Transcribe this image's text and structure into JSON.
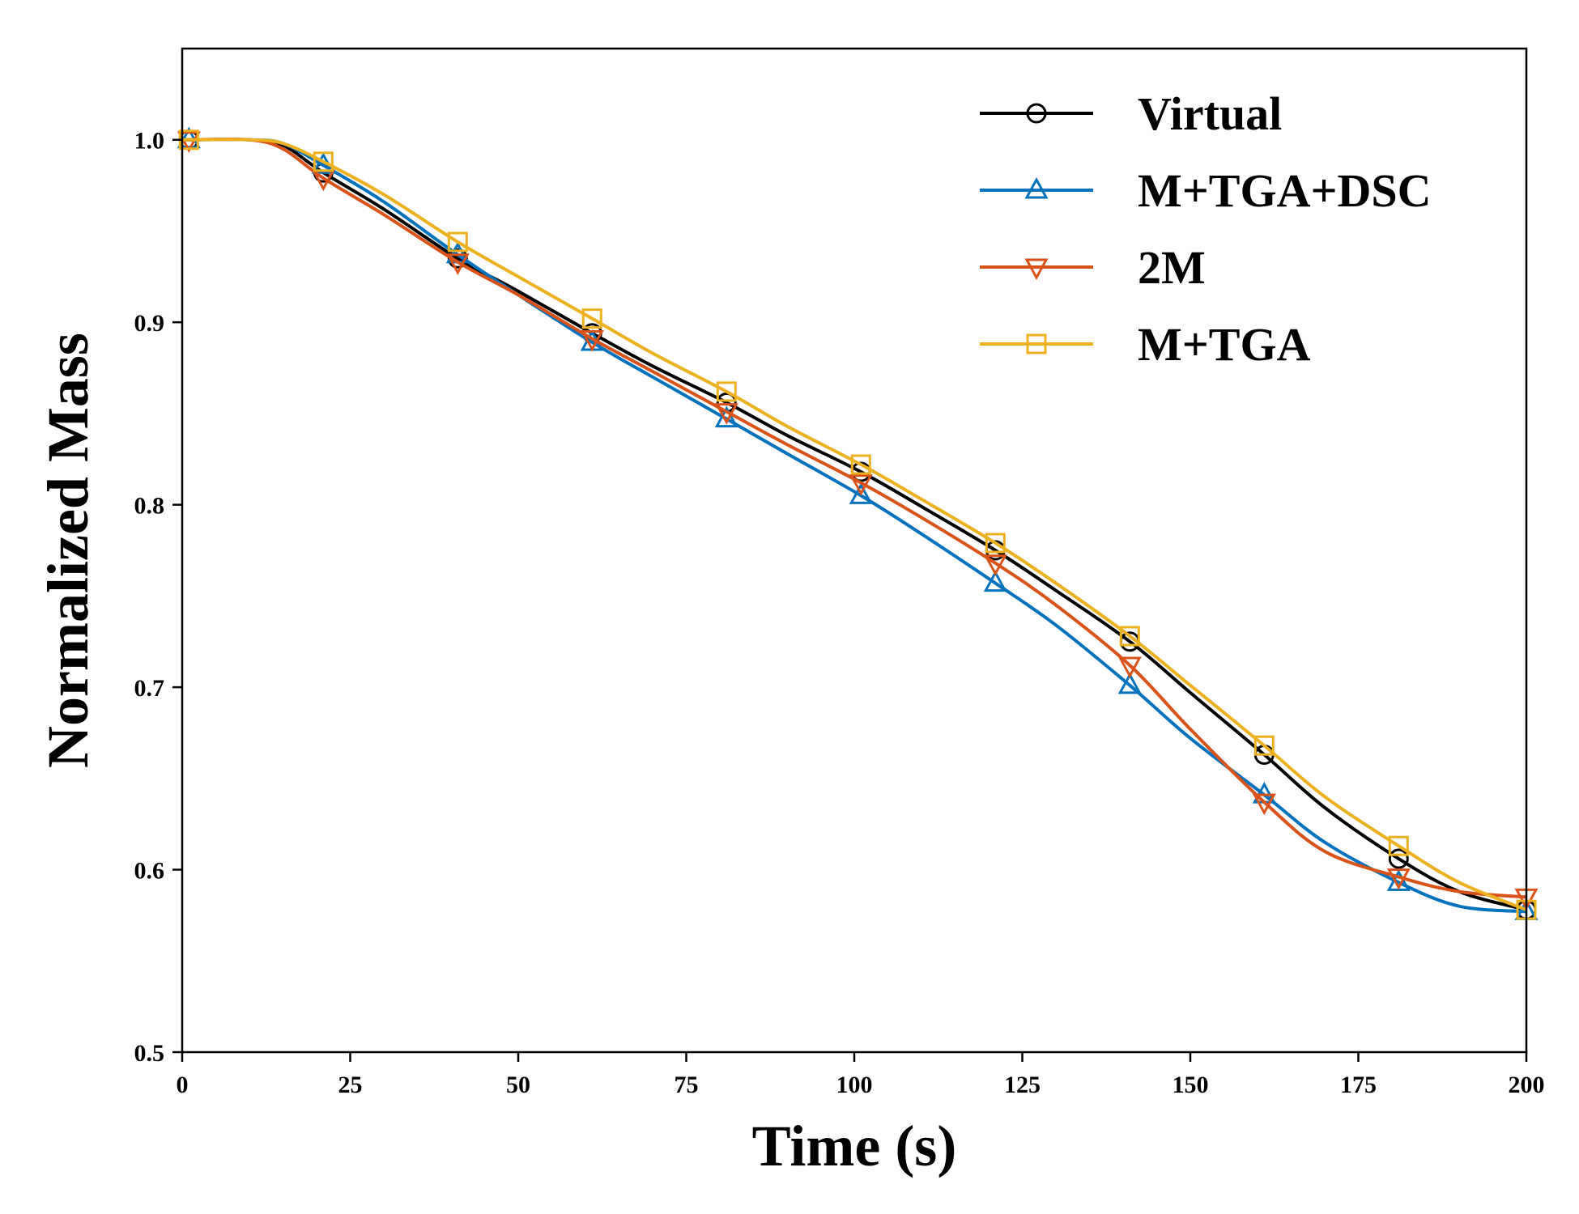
{
  "chart_data": {
    "type": "line",
    "xlabel": "Time (s)",
    "ylabel": "Normalized Mass",
    "xlim": [
      0,
      200
    ],
    "ylim": [
      0.5,
      1.05
    ],
    "xticks": [
      0,
      25,
      50,
      75,
      100,
      125,
      150,
      175,
      200
    ],
    "xtick_labels": [
      "0",
      "25",
      "50",
      "75",
      "100",
      "125",
      "150",
      "175",
      "200"
    ],
    "yticks": [
      0.5,
      0.6,
      0.7,
      0.8,
      0.9,
      1.0
    ],
    "ytick_labels": [
      "0.5",
      "0.6",
      "0.7",
      "0.8",
      "0.9",
      "1.0"
    ],
    "grid": false,
    "legend_position": "top-right",
    "marker_x": [
      1,
      21,
      41,
      61,
      81,
      101,
      121,
      141,
      161,
      181,
      200
    ],
    "series": [
      {
        "name": "Virtual",
        "color": "#000000",
        "marker": "circle",
        "x": [
          0,
          1,
          10,
          15,
          21,
          30,
          41,
          50,
          61,
          70,
          81,
          90,
          101,
          110,
          121,
          130,
          141,
          150,
          161,
          170,
          181,
          190,
          200
        ],
        "y": [
          1.0,
          1.0,
          1.0,
          0.997,
          0.982,
          0.962,
          0.935,
          0.917,
          0.894,
          0.876,
          0.856,
          0.838,
          0.818,
          0.799,
          0.775,
          0.753,
          0.725,
          0.697,
          0.663,
          0.634,
          0.606,
          0.588,
          0.578
        ]
      },
      {
        "name": "M+TGA+DSC",
        "color": "#0072BD",
        "marker": "triangle-up",
        "x": [
          0,
          1,
          10,
          15,
          21,
          30,
          41,
          50,
          61,
          70,
          81,
          90,
          101,
          110,
          121,
          130,
          141,
          150,
          161,
          170,
          181,
          190,
          200
        ],
        "y": [
          1.0,
          1.0,
          1.0,
          0.998,
          0.986,
          0.966,
          0.937,
          0.915,
          0.889,
          0.87,
          0.847,
          0.828,
          0.805,
          0.784,
          0.757,
          0.734,
          0.701,
          0.672,
          0.641,
          0.615,
          0.593,
          0.58,
          0.577
        ]
      },
      {
        "name": "2M",
        "color": "#D95319",
        "marker": "triangle-down",
        "x": [
          0,
          1,
          10,
          15,
          21,
          30,
          41,
          50,
          61,
          70,
          81,
          90,
          101,
          110,
          121,
          130,
          141,
          150,
          161,
          170,
          181,
          190,
          200
        ],
        "y": [
          1.0,
          1.0,
          1.0,
          0.995,
          0.979,
          0.959,
          0.933,
          0.915,
          0.891,
          0.873,
          0.851,
          0.833,
          0.812,
          0.793,
          0.768,
          0.745,
          0.712,
          0.677,
          0.637,
          0.61,
          0.596,
          0.588,
          0.585
        ]
      },
      {
        "name": "M+TGA",
        "color": "#EDB120",
        "marker": "square",
        "x": [
          0,
          1,
          10,
          15,
          21,
          30,
          41,
          50,
          61,
          70,
          81,
          90,
          101,
          110,
          121,
          130,
          141,
          150,
          161,
          170,
          181,
          190,
          200
        ],
        "y": [
          1.0,
          1.0,
          1.0,
          0.998,
          0.988,
          0.97,
          0.944,
          0.925,
          0.902,
          0.883,
          0.862,
          0.843,
          0.822,
          0.803,
          0.779,
          0.757,
          0.728,
          0.701,
          0.668,
          0.64,
          0.613,
          0.593,
          0.578
        ]
      }
    ]
  }
}
